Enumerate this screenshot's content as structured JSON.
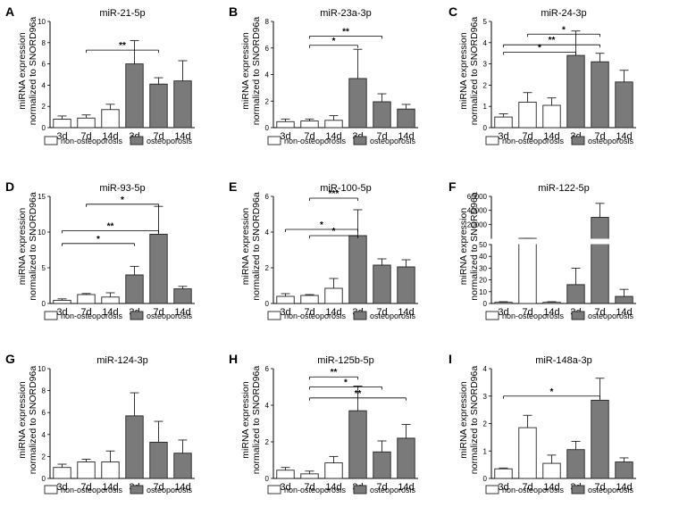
{
  "colors": {
    "control_fill": "#ffffff",
    "osteo_fill": "#7a7a7a",
    "stroke": "#222222"
  },
  "chart_data": [
    {
      "letter": "A",
      "type": "bar",
      "title": "miR-21-5p",
      "ylabel": [
        "miRNA expression",
        "normalized to SNORD96a"
      ],
      "categories": [
        "3d",
        "7d",
        "14d",
        "3d",
        "7d",
        "14d"
      ],
      "values": [
        0.8,
        0.9,
        1.7,
        6.0,
        4.1,
        4.4
      ],
      "errors": [
        0.3,
        0.3,
        0.5,
        2.2,
        0.6,
        1.9
      ],
      "groups": [
        "control",
        "control",
        "control",
        "osteo",
        "osteo",
        "osteo"
      ],
      "ylim": [
        0,
        10
      ],
      "yticks": [
        0,
        2,
        4,
        6,
        8,
        10
      ],
      "sig": [
        {
          "from": 1,
          "to": 4,
          "label": "**",
          "y": 7.3
        }
      ],
      "legend": [
        "non-osteoporosis",
        "osteoporosis"
      ]
    },
    {
      "letter": "B",
      "type": "bar",
      "title": "miR-23a-3p",
      "ylabel": [
        "miRNA expression",
        "normalized to SNORD96a"
      ],
      "categories": [
        "3d",
        "7d",
        "14d",
        "3d",
        "7d",
        "14d"
      ],
      "values": [
        0.45,
        0.5,
        0.55,
        3.7,
        1.95,
        1.4
      ],
      "errors": [
        0.2,
        0.15,
        0.35,
        2.2,
        0.6,
        0.35
      ],
      "groups": [
        "control",
        "control",
        "control",
        "osteo",
        "osteo",
        "osteo"
      ],
      "ylim": [
        0,
        8
      ],
      "yticks": [
        0,
        2,
        4,
        6,
        8
      ],
      "sig": [
        {
          "from": 1,
          "to": 3,
          "label": "*",
          "y": 6.2
        },
        {
          "from": 1,
          "to": 4,
          "label": "**",
          "y": 6.9
        }
      ],
      "legend": [
        "non-osteoporosis",
        "osteoporosis"
      ]
    },
    {
      "letter": "C",
      "type": "bar",
      "title": "miR-24-3p",
      "ylabel": [
        "miRNA expression",
        "normalized to SNORD96a"
      ],
      "categories": [
        "3d",
        "7d",
        "14d",
        "3d",
        "7d",
        "14d"
      ],
      "values": [
        0.5,
        1.2,
        1.05,
        3.4,
        3.1,
        2.15
      ],
      "errors": [
        0.15,
        0.45,
        0.35,
        1.15,
        0.4,
        0.55
      ],
      "groups": [
        "control",
        "control",
        "control",
        "osteo",
        "osteo",
        "osteo"
      ],
      "ylim": [
        0,
        5
      ],
      "yticks": [
        0,
        1,
        2,
        3,
        4,
        5
      ],
      "sig": [
        {
          "from": 0,
          "to": 3,
          "label": "*",
          "y": 3.55
        },
        {
          "from": 0,
          "to": 4,
          "label": "**",
          "y": 3.9
        },
        {
          "from": 1,
          "to": 4,
          "label": "*",
          "y": 4.4
        }
      ],
      "legend": [
        "non-osteoporosis",
        "osteoporosis"
      ]
    },
    {
      "letter": "D",
      "type": "bar",
      "title": "miR-93-5p",
      "ylabel": [
        "miRNA expression",
        "normalized to SNORD96a"
      ],
      "categories": [
        "3d",
        "7d",
        "14d",
        "3d",
        "7d",
        "14d"
      ],
      "values": [
        0.45,
        1.25,
        0.9,
        4.0,
        9.7,
        2.05
      ],
      "errors": [
        0.2,
        0.15,
        0.6,
        1.2,
        3.9,
        0.35
      ],
      "groups": [
        "control",
        "control",
        "control",
        "osteo",
        "osteo",
        "osteo"
      ],
      "ylim": [
        0,
        15
      ],
      "yticks": [
        0,
        5,
        10,
        15
      ],
      "sig": [
        {
          "from": 0,
          "to": 3,
          "label": "*",
          "y": 8.4
        },
        {
          "from": 0,
          "to": 4,
          "label": "**",
          "y": 10.2
        },
        {
          "from": 1,
          "to": 4,
          "label": "*",
          "y": 13.9
        }
      ],
      "legend": [
        "non-osteoporosis",
        "osteoporosis"
      ]
    },
    {
      "letter": "E",
      "type": "bar",
      "title": "miR-100-5p",
      "ylabel": [
        "miRNA expression",
        "normalized to SNORD96a"
      ],
      "categories": [
        "3d",
        "7d",
        "14d",
        "3d",
        "7d",
        "14d"
      ],
      "values": [
        0.4,
        0.45,
        0.85,
        3.8,
        2.15,
        2.05
      ],
      "errors": [
        0.15,
        0.05,
        0.55,
        1.45,
        0.35,
        0.4
      ],
      "groups": [
        "control",
        "control",
        "control",
        "osteo",
        "osteo",
        "osteo"
      ],
      "ylim": [
        0,
        6
      ],
      "yticks": [
        0,
        2,
        4,
        6
      ],
      "sig": [
        {
          "from": 1,
          "to": 3,
          "label": "*",
          "y": 3.8
        },
        {
          "from": 0,
          "to": 3,
          "label": "*",
          "y": 4.15
        },
        {
          "from": 1,
          "to": 3,
          "label": "***",
          "y": 5.9
        }
      ],
      "legend": [
        "non-osteoporosis",
        "osteoporosis"
      ]
    },
    {
      "letter": "F",
      "type": "bar",
      "title": "miR-122-5p",
      "broken": true,
      "ylabel": [
        "miRNA expression",
        "normalized to SNORD96a"
      ],
      "categories": [
        "3d",
        "7d",
        "14d",
        "3d",
        "7d",
        "14d"
      ],
      "values": [
        1,
        57,
        1,
        16,
        30000,
        6
      ],
      "errors": [
        0.5,
        1.5,
        0.5,
        14,
        20000,
        6
      ],
      "groups": [
        "control",
        "control",
        "control",
        "osteo",
        "osteo",
        "osteo"
      ],
      "ylim_lower": [
        0,
        50
      ],
      "yticks_lower": [
        0,
        10,
        20,
        30,
        40,
        50
      ],
      "ylim_upper": [
        50,
        60000
      ],
      "yticks_upper": [
        20000,
        40000,
        60000
      ],
      "sig": [],
      "legend": [
        "non-osteoporosis",
        "osteoporosis"
      ]
    },
    {
      "letter": "G",
      "type": "bar",
      "title": "miR-124-3p",
      "ylabel": [
        "miRNA expression",
        "normalized to SNORD96a"
      ],
      "categories": [
        "3d",
        "7d",
        "14d",
        "3d",
        "7d",
        "14d"
      ],
      "values": [
        1.0,
        1.5,
        1.5,
        5.7,
        3.3,
        2.3
      ],
      "errors": [
        0.3,
        0.25,
        1.0,
        2.1,
        1.9,
        1.2
      ],
      "groups": [
        "control",
        "control",
        "control",
        "osteo",
        "osteo",
        "osteo"
      ],
      "ylim": [
        0,
        10
      ],
      "yticks": [
        0,
        2,
        4,
        6,
        8,
        10
      ],
      "sig": [],
      "legend": [
        "non-osteoporosis",
        "osteoporosis"
      ]
    },
    {
      "letter": "H",
      "type": "bar",
      "title": "miR-125b-5p",
      "ylabel": [
        "miRNA expression",
        "normalized to SNORD96a"
      ],
      "categories": [
        "3d",
        "7d",
        "14d",
        "3d",
        "7d",
        "14d"
      ],
      "values": [
        0.45,
        0.25,
        0.85,
        3.7,
        1.45,
        2.2
      ],
      "errors": [
        0.15,
        0.15,
        0.35,
        1.35,
        0.6,
        0.75
      ],
      "groups": [
        "control",
        "control",
        "control",
        "osteo",
        "osteo",
        "osteo"
      ],
      "ylim": [
        0,
        6
      ],
      "yticks": [
        0,
        2,
        4,
        6
      ],
      "sig": [
        {
          "from": 1,
          "to": 5,
          "label": "**",
          "y": 4.4
        },
        {
          "from": 1,
          "to": 4,
          "label": "*",
          "y": 5.0
        },
        {
          "from": 1,
          "to": 3,
          "label": "**",
          "y": 5.55
        }
      ],
      "legend": [
        "non-osteoporosis",
        "osteoporosis"
      ]
    },
    {
      "letter": "I",
      "type": "bar",
      "title": "miR-148a-3p",
      "ylabel": [
        "miRNA expression",
        "normalized to SNORD96a"
      ],
      "categories": [
        "3d",
        "7d",
        "14d",
        "3d",
        "7d",
        "14d"
      ],
      "values": [
        0.35,
        1.85,
        0.55,
        1.05,
        2.85,
        0.6
      ],
      "errors": [
        0.03,
        0.45,
        0.3,
        0.3,
        0.8,
        0.15
      ],
      "groups": [
        "control",
        "control",
        "control",
        "osteo",
        "osteo",
        "osteo"
      ],
      "ylim": [
        0,
        4
      ],
      "yticks": [
        0,
        1,
        2,
        3,
        4
      ],
      "sig": [
        {
          "from": 0,
          "to": 4,
          "label": "*",
          "y": 3.0
        }
      ],
      "legend": [
        "non-osteoporosis",
        "osteoporosis"
      ]
    }
  ]
}
